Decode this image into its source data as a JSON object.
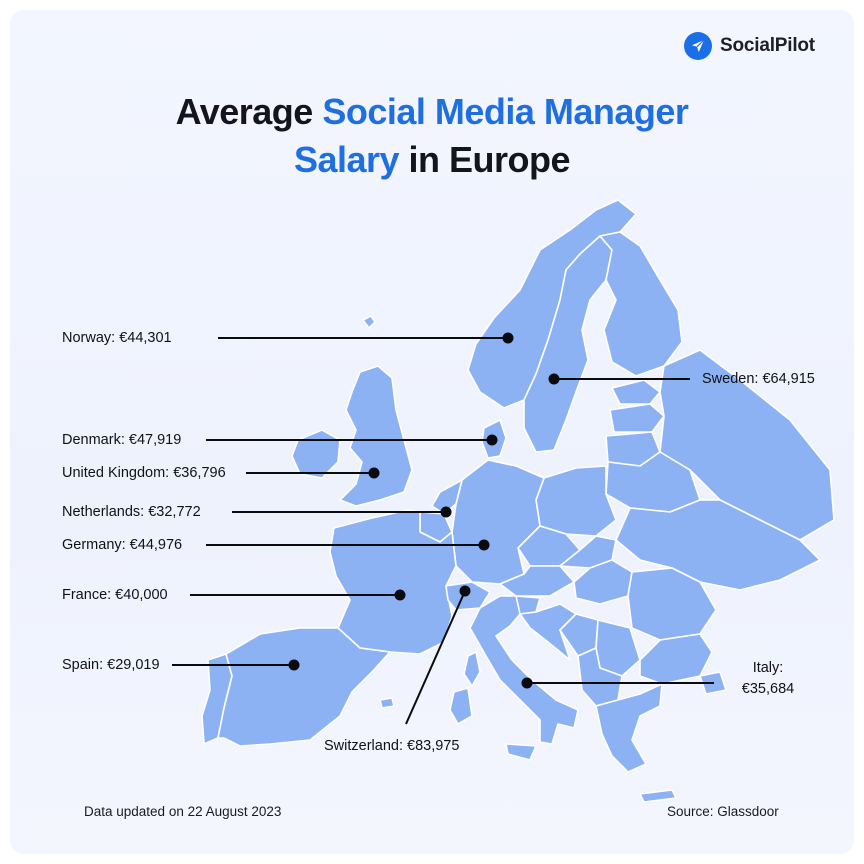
{
  "brand": {
    "name": "SocialPilot",
    "icon": "paper-plane-icon",
    "color": "#1b6fe6"
  },
  "title": {
    "line1_plain": "Average ",
    "line1_accent": "Social Media Manager",
    "line2_accent": "Salary",
    "line2_plain": " in Europe"
  },
  "colors": {
    "land": "#8cb2f3",
    "border": "#ffffff",
    "accent": "#1f6fe0",
    "marker": "#0b0b0f"
  },
  "countries": [
    {
      "label": "Norway: €44,301",
      "country": "Norway",
      "salary_eur": 44301
    },
    {
      "label": "Sweden: €64,915",
      "country": "Sweden",
      "salary_eur": 64915
    },
    {
      "label": "Denmark: €47,919",
      "country": "Denmark",
      "salary_eur": 47919
    },
    {
      "label": "United Kingdom: €36,796",
      "country": "United Kingdom",
      "salary_eur": 36796
    },
    {
      "label": "Netherlands: €32,772",
      "country": "Netherlands",
      "salary_eur": 32772
    },
    {
      "label": "Germany: €44,976",
      "country": "Germany",
      "salary_eur": 44976
    },
    {
      "label": "France: €40,000",
      "country": "France",
      "salary_eur": 40000
    },
    {
      "label": "Spain: €29,019",
      "country": "Spain",
      "salary_eur": 29019
    },
    {
      "label": "Switzerland: €83,975",
      "country": "Switzerland",
      "salary_eur": 83975
    },
    {
      "label_line1": "Italy:",
      "label_line2": "€35,684",
      "country": "Italy",
      "salary_eur": 35684
    }
  ],
  "footer": {
    "updated": "Data updated on 22 August 2023",
    "source": "Source: Glassdoor"
  }
}
